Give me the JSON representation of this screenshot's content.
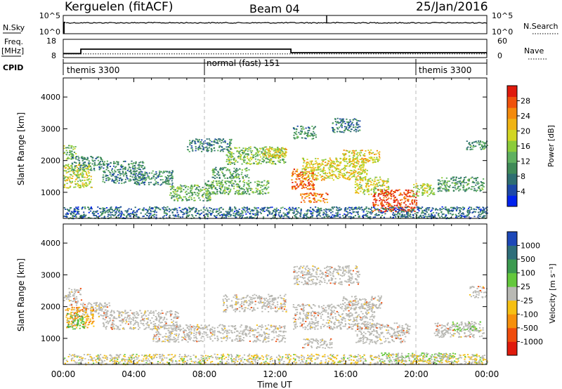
{
  "header": {
    "station": "Kerguelen (fitACF)",
    "beam": "Beam 04",
    "date": "25/Jan/2016"
  },
  "colors": {
    "ink": "#000000",
    "ground_scatter": "#b9b9b4",
    "background": "#ffffff"
  },
  "chart_data": [
    {
      "type": "line",
      "name": "noise-panel",
      "left_label": "N.Sky",
      "right_label": "N.Search",
      "left_ticks": [
        "10^5",
        "10^0"
      ],
      "right_ticks": [
        "10^5",
        "10^0"
      ],
      "x_range_hours": [
        0,
        24
      ]
    },
    {
      "type": "line",
      "name": "frequency-panel",
      "left_label": "Freq.",
      "left_unit": "[MHz]",
      "right_label": "Nave",
      "left_ticks": [
        18,
        8
      ],
      "right_ticks": [
        60,
        0
      ],
      "frequency_steps": [
        {
          "start": 0.0,
          "end": 1.0,
          "value": 10.2
        },
        {
          "start": 1.0,
          "end": 12.9,
          "value": 12.6
        },
        {
          "start": 12.9,
          "end": 24.0,
          "value": 10.7
        }
      ],
      "nave_level": 12,
      "x_range_hours": [
        0,
        24
      ]
    },
    {
      "type": "table",
      "name": "cpid-panel",
      "label": "CPID",
      "segments": [
        {
          "label": "themis 3300",
          "start": 0.0
        },
        {
          "label": "normal (fast) 151",
          "start": 8.0
        },
        {
          "label": "themis 3300",
          "start": 20.0
        }
      ]
    },
    {
      "type": "heatmap",
      "name": "power-panel",
      "ylabel": "Slant Range [km]",
      "yticks": [
        1000,
        2000,
        3000,
        4000
      ],
      "ylim": [
        180,
        4600
      ],
      "colorbar": {
        "label": "Power [dB]",
        "ticks": [
          28,
          24,
          20,
          16,
          12,
          8,
          4
        ],
        "range": [
          0,
          32
        ],
        "colors": [
          "#0022ee",
          "#1d48a8",
          "#2e6e72",
          "#3f8a58",
          "#5fb060",
          "#8ccc3a",
          "#d2d624",
          "#f0b414",
          "#f48a0c",
          "#f0520c",
          "#e01a0c"
        ]
      },
      "regions": [
        {
          "t0": 0.0,
          "t1": 1.6,
          "r0": 1150,
          "r1": 1900,
          "value": 18
        },
        {
          "t0": 0.0,
          "t1": 0.7,
          "r0": 2050,
          "r1": 2500,
          "value": 14
        },
        {
          "t0": 0.4,
          "t1": 2.2,
          "r0": 1700,
          "r1": 2150,
          "value": 10
        },
        {
          "t0": 2.2,
          "t1": 4.6,
          "r0": 1300,
          "r1": 2000,
          "value": 9
        },
        {
          "t0": 4.0,
          "t1": 6.2,
          "r0": 1250,
          "r1": 1700,
          "value": 9
        },
        {
          "t0": 6.0,
          "t1": 8.4,
          "r0": 750,
          "r1": 1250,
          "value": 13
        },
        {
          "t0": 8.0,
          "t1": 11.6,
          "r0": 950,
          "r1": 1400,
          "value": 13
        },
        {
          "t0": 8.4,
          "t1": 10.5,
          "r0": 1450,
          "r1": 1800,
          "value": 11
        },
        {
          "t0": 9.2,
          "t1": 12.6,
          "r0": 1900,
          "r1": 2450,
          "value": 15
        },
        {
          "t0": 11.3,
          "t1": 12.7,
          "r0": 2100,
          "r1": 2400,
          "value": 20
        },
        {
          "t0": 7.0,
          "t1": 9.5,
          "r0": 2300,
          "r1": 2700,
          "value": 9
        },
        {
          "t0": 12.9,
          "t1": 14.2,
          "r0": 1100,
          "r1": 1750,
          "value": 27
        },
        {
          "t0": 13.4,
          "t1": 15.0,
          "r0": 700,
          "r1": 1000,
          "value": 25
        },
        {
          "t0": 13.5,
          "t1": 17.2,
          "r0": 1400,
          "r1": 2100,
          "value": 20
        },
        {
          "t0": 15.8,
          "t1": 17.9,
          "r0": 1950,
          "r1": 2350,
          "value": 20
        },
        {
          "t0": 16.5,
          "t1": 18.4,
          "r0": 950,
          "r1": 1500,
          "value": 18
        },
        {
          "t0": 17.5,
          "t1": 20.0,
          "r0": 400,
          "r1": 1100,
          "value": 29
        },
        {
          "t0": 13.0,
          "t1": 14.3,
          "r0": 2700,
          "r1": 3100,
          "value": 10
        },
        {
          "t0": 15.2,
          "t1": 16.8,
          "r0": 2900,
          "r1": 3350,
          "value": 8
        },
        {
          "t0": 19.7,
          "t1": 21.0,
          "r0": 900,
          "r1": 1300,
          "value": 17
        },
        {
          "t0": 21.2,
          "t1": 23.8,
          "r0": 1050,
          "r1": 1500,
          "value": 11
        },
        {
          "t0": 22.8,
          "t1": 24.0,
          "r0": 2350,
          "r1": 2650,
          "value": 10
        },
        {
          "t0": 0.0,
          "t1": 24.0,
          "r0": 190,
          "r1": 560,
          "value": 7
        }
      ]
    },
    {
      "type": "heatmap",
      "name": "velocity-panel",
      "ylabel": "Slant Range [km]",
      "yticks": [
        1000,
        2000,
        3000,
        4000
      ],
      "ylim": [
        180,
        4600
      ],
      "colorbar": {
        "label": "Velocity [m s⁻¹]",
        "ticks": [
          1000,
          500,
          100,
          25,
          -25,
          -100,
          -500,
          -1000
        ],
        "range": [
          -1200,
          1200
        ],
        "colors": [
          "#e01a0c",
          "#f04c0c",
          "#f6900c",
          "#f6c014",
          "#b9b9b4",
          "#64c83c",
          "#3c9a50",
          "#2e6e7a",
          "#1d48b8"
        ]
      },
      "ground_ranges": [
        {
          "t0": 0.3,
          "t1": 2.6,
          "r0": 1700,
          "r1": 2150
        },
        {
          "t0": 2.2,
          "t1": 6.5,
          "r0": 1300,
          "r1": 1900
        },
        {
          "t0": 5.0,
          "t1": 12.6,
          "r0": 900,
          "r1": 1450
        },
        {
          "t0": 9.0,
          "t1": 12.6,
          "r0": 1850,
          "r1": 2400
        },
        {
          "t0": 13.0,
          "t1": 17.6,
          "r0": 1300,
          "r1": 2100
        },
        {
          "t0": 13.5,
          "t1": 15.2,
          "r0": 700,
          "r1": 1000
        },
        {
          "t0": 16.5,
          "t1": 19.6,
          "r0": 850,
          "r1": 1500
        },
        {
          "t0": 15.8,
          "t1": 18.0,
          "r0": 1950,
          "r1": 2350
        },
        {
          "t0": 13.0,
          "t1": 16.8,
          "r0": 2700,
          "r1": 3300
        },
        {
          "t0": 21.0,
          "t1": 23.8,
          "r0": 1050,
          "r1": 1500
        },
        {
          "t0": 0.0,
          "t1": 1.0,
          "r0": 2150,
          "r1": 2600
        },
        {
          "t0": 23.0,
          "t1": 24.0,
          "r0": 2300,
          "r1": 2650
        }
      ],
      "regions": [
        {
          "t0": 0.1,
          "t1": 1.7,
          "r0": 1350,
          "r1": 2000,
          "value": -450
        },
        {
          "t0": 0.2,
          "t1": 1.2,
          "r0": 1300,
          "r1": 1800,
          "value": 300
        },
        {
          "t0": 18.0,
          "t1": 22.2,
          "r0": 260,
          "r1": 560,
          "value": 150
        },
        {
          "t0": 22.0,
          "t1": 23.6,
          "r0": 1250,
          "r1": 1550,
          "value": 160
        },
        {
          "t0": 0.0,
          "t1": 24.0,
          "r0": 190,
          "r1": 520,
          "value": -60
        }
      ]
    }
  ],
  "x_axis": {
    "label": "Time UT",
    "ticks": [
      "00:00",
      "04:00",
      "08:00",
      "12:00",
      "16:00",
      "20:00",
      "00:00"
    ],
    "range_hours": [
      0,
      24
    ],
    "dashed_hours": [
      8,
      20
    ]
  }
}
